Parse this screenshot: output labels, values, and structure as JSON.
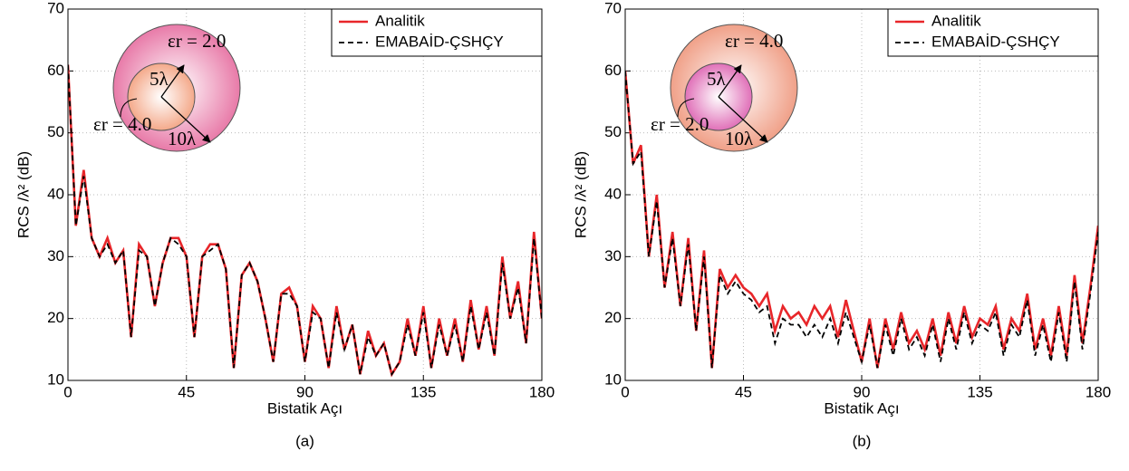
{
  "chart_data": [
    {
      "type": "line",
      "caption": "(a)",
      "x_label": "Bistatik Açı",
      "y_label": "RCS /λ² (dB)",
      "xlim": [
        0,
        180
      ],
      "ylim": [
        10,
        70
      ],
      "xticks": [
        0,
        45,
        90,
        135,
        180
      ],
      "yticks": [
        10,
        20,
        30,
        40,
        50,
        60,
        70
      ],
      "grid": true,
      "legend": "upper right",
      "x": [
        0,
        3,
        6,
        9,
        12,
        15,
        18,
        21,
        24,
        27,
        30,
        33,
        36,
        39,
        42,
        45,
        48,
        51,
        54,
        57,
        60,
        63,
        66,
        69,
        72,
        75,
        78,
        81,
        84,
        87,
        90,
        93,
        96,
        99,
        102,
        105,
        108,
        111,
        114,
        117,
        120,
        123,
        126,
        129,
        132,
        135,
        138,
        141,
        144,
        147,
        150,
        153,
        156,
        159,
        162,
        165,
        168,
        171,
        174,
        177,
        180
      ],
      "series": [
        {
          "name": "Analitik",
          "color": "#e8262a",
          "values": [
            61,
            35,
            44,
            33,
            30,
            33,
            29,
            31,
            17,
            32,
            30,
            22,
            29,
            33,
            33,
            30,
            17,
            30,
            32,
            32,
            28,
            12,
            27,
            29,
            26,
            20,
            13,
            24,
            25,
            22,
            13,
            22,
            20,
            12,
            22,
            15,
            19,
            11,
            18,
            14,
            16,
            11,
            13,
            20,
            14,
            22,
            12,
            20,
            14,
            20,
            13,
            23,
            15,
            22,
            14,
            30,
            20,
            26,
            16,
            34,
            20
          ]
        },
        {
          "name": "EMABAİD-ÇSHÇY",
          "color": "#000000",
          "values": [
            61,
            35,
            43,
            33,
            30,
            32,
            29,
            31,
            17,
            31,
            30,
            22,
            29,
            33,
            32,
            30,
            17,
            30,
            31,
            32,
            28,
            12,
            27,
            29,
            26,
            20,
            13,
            24,
            24,
            22,
            13,
            21,
            20,
            12,
            21,
            15,
            19,
            11,
            17,
            14,
            16,
            11,
            13,
            19,
            14,
            21,
            12,
            19,
            14,
            19,
            13,
            22,
            15,
            21,
            14,
            29,
            20,
            25,
            16,
            33,
            20
          ]
        }
      ],
      "inset": {
        "outer_label": "εr = 2.0",
        "inner_label": "εr = 4.0",
        "inner_radius_label": "5λ",
        "outer_radius_label": "10λ",
        "outer_color": "#e87aa8",
        "inner_color": "#f4a98a"
      }
    },
    {
      "type": "line",
      "caption": "(b)",
      "x_label": "Bistatik Açı",
      "y_label": "RCS /λ² (dB)",
      "xlim": [
        0,
        180
      ],
      "ylim": [
        10,
        70
      ],
      "xticks": [
        0,
        45,
        90,
        135,
        180
      ],
      "yticks": [
        10,
        20,
        30,
        40,
        50,
        60,
        70
      ],
      "grid": true,
      "legend": "upper right",
      "x": [
        0,
        3,
        6,
        9,
        12,
        15,
        18,
        21,
        24,
        27,
        30,
        33,
        36,
        39,
        42,
        45,
        48,
        51,
        54,
        57,
        60,
        63,
        66,
        69,
        72,
        75,
        78,
        81,
        84,
        87,
        90,
        93,
        96,
        99,
        102,
        105,
        108,
        111,
        114,
        117,
        120,
        123,
        126,
        129,
        132,
        135,
        138,
        141,
        144,
        147,
        150,
        153,
        156,
        159,
        162,
        165,
        168,
        171,
        174,
        177,
        180
      ],
      "series": [
        {
          "name": "Analitik",
          "color": "#e8262a",
          "values": [
            60,
            45,
            48,
            30,
            40,
            25,
            34,
            22,
            33,
            18,
            31,
            12,
            28,
            25,
            27,
            25,
            24,
            22,
            24,
            18,
            22,
            20,
            21,
            19,
            22,
            20,
            22,
            17,
            23,
            18,
            13,
            20,
            12,
            20,
            15,
            21,
            16,
            18,
            15,
            20,
            14,
            21,
            16,
            22,
            17,
            20,
            19,
            22,
            15,
            20,
            18,
            24,
            15,
            20,
            14,
            22,
            14,
            27,
            16,
            25,
            35
          ]
        },
        {
          "name": "EMABAİD-ÇSHÇY",
          "color": "#000000",
          "values": [
            60,
            45,
            47,
            30,
            39,
            25,
            33,
            22,
            32,
            18,
            30,
            12,
            27,
            24,
            26,
            24,
            23,
            21,
            22,
            16,
            20,
            19,
            19,
            17,
            19,
            17,
            20,
            16,
            21,
            17,
            13,
            19,
            12,
            19,
            14,
            20,
            15,
            17,
            14,
            19,
            13,
            20,
            15,
            21,
            16,
            19,
            18,
            21,
            14,
            19,
            17,
            23,
            14,
            19,
            13,
            21,
            13,
            26,
            15,
            24,
            34
          ]
        }
      ],
      "inset": {
        "outer_label": "εr = 4.0",
        "inner_label": "εr = 2.0",
        "inner_radius_label": "5λ",
        "outer_radius_label": "10λ",
        "outer_color": "#f0a088",
        "inner_color": "#e070b8"
      }
    }
  ]
}
